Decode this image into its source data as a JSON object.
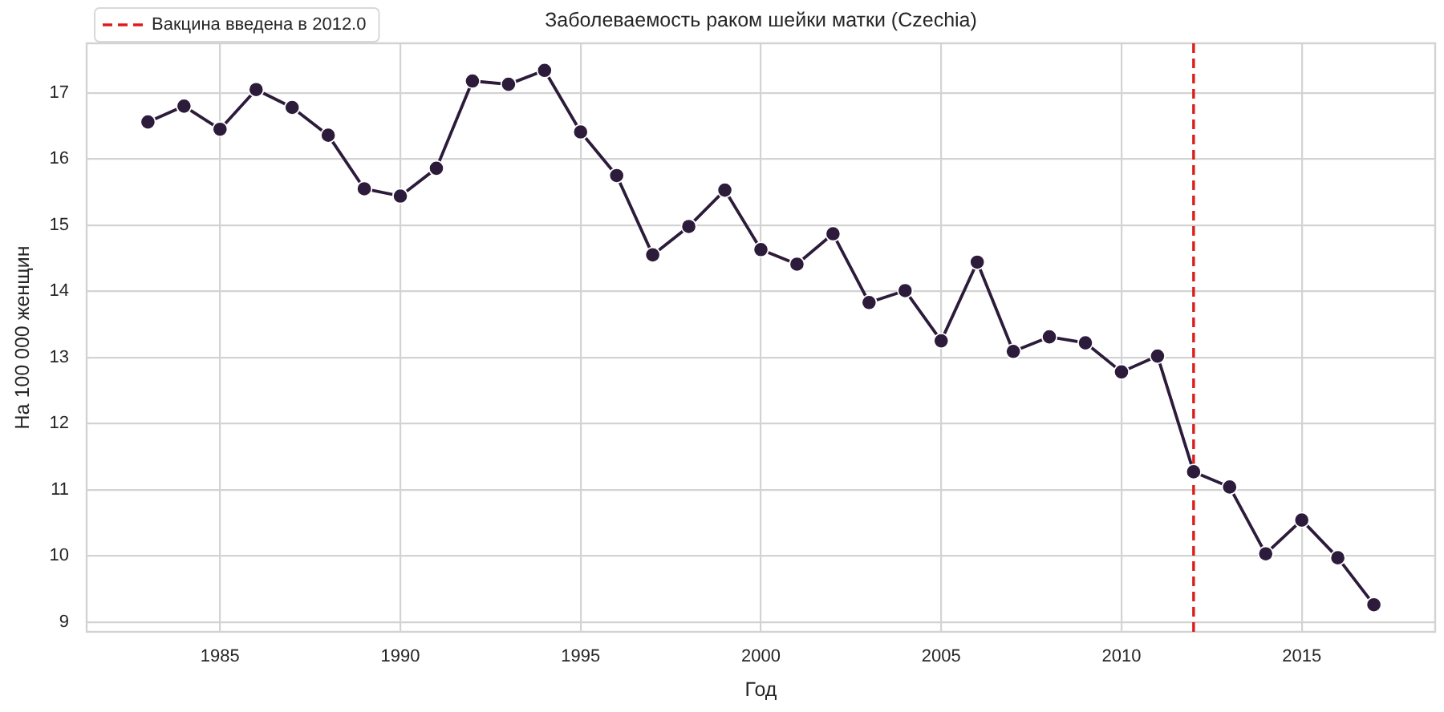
{
  "chart_data": {
    "type": "line",
    "title": "Заболеваемость раком шейки матки (Czechia)",
    "xlabel": "Год",
    "ylabel": "На 100 000 женщин",
    "x": [
      1983,
      1984,
      1985,
      1986,
      1987,
      1988,
      1989,
      1990,
      1991,
      1992,
      1993,
      1994,
      1995,
      1996,
      1997,
      1998,
      1999,
      2000,
      2001,
      2002,
      2003,
      2004,
      2005,
      2006,
      2007,
      2008,
      2009,
      2010,
      2011,
      2012,
      2013,
      2014,
      2015,
      2016,
      2017
    ],
    "series": [
      {
        "color": "#2c1b3a",
        "values": [
          16.56,
          16.8,
          16.45,
          17.05,
          16.78,
          16.36,
          15.55,
          15.44,
          15.86,
          17.18,
          17.13,
          17.34,
          16.41,
          15.75,
          14.55,
          14.98,
          15.53,
          14.63,
          14.41,
          14.87,
          13.83,
          14.01,
          13.25,
          14.44,
          13.09,
          13.31,
          13.22,
          12.78,
          13.02,
          11.27,
          11.04,
          10.03,
          10.54,
          9.97,
          9.26
        ]
      }
    ],
    "xlim": [
      1981.3,
      2018.7
    ],
    "ylim": [
      8.85,
      17.75
    ],
    "xticks": [
      1985,
      1990,
      1995,
      2000,
      2005,
      2010,
      2015
    ],
    "yticks": [
      9,
      10,
      11,
      12,
      13,
      14,
      15,
      16,
      17
    ],
    "ref_lines": [
      {
        "axis": "x",
        "value": 2012,
        "label": "Вакцина введена в 2012.0",
        "color": "#dd1c1c",
        "line_style": "dashed"
      }
    ],
    "grid": true,
    "legend": "top left",
    "marker": "circle",
    "line_style": "solid"
  }
}
